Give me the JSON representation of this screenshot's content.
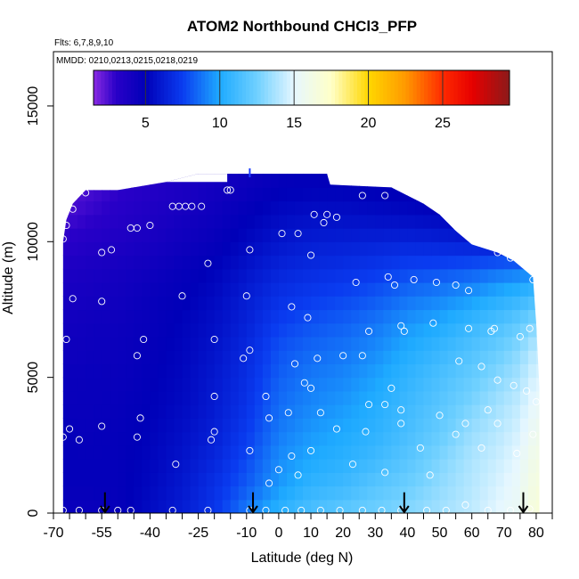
{
  "chart_data": {
    "type": "heatmap",
    "title": "ATOM2 Northbound CHCl3_PFP",
    "flights_label": "Flts: 6,7,8,9,10",
    "dates_label": "MMDD: 0210,0213,0215,0218,0219",
    "xlabel": "Latitude (deg N)",
    "ylabel": "Altitude (m)",
    "xlim": [
      -70,
      85
    ],
    "ylim": [
      0,
      17000
    ],
    "x_ticks": [
      -70,
      -65,
      -60,
      -55,
      -50,
      -45,
      -40,
      -35,
      -30,
      -25,
      -20,
      -15,
      -10,
      -5,
      0,
      5,
      10,
      15,
      20,
      25,
      30,
      35,
      40,
      45,
      50,
      55,
      60,
      65,
      70,
      75,
      80,
      85
    ],
    "x_tick_labels": [
      {
        "value": -70,
        "label": "-70"
      },
      {
        "value": -55,
        "label": "-55"
      },
      {
        "value": -40,
        "label": "-40"
      },
      {
        "value": -25,
        "label": "-25"
      },
      {
        "value": -10,
        "label": "-10"
      },
      {
        "value": 0,
        "label": "0"
      },
      {
        "value": 10,
        "label": "10"
      },
      {
        "value": 20,
        "label": "20"
      },
      {
        "value": 30,
        "label": "30"
      },
      {
        "value": 40,
        "label": "40"
      },
      {
        "value": 50,
        "label": "50"
      },
      {
        "value": 60,
        "label": "60"
      },
      {
        "value": 70,
        "label": "70"
      },
      {
        "value": 80,
        "label": "80"
      }
    ],
    "y_ticks": [
      {
        "value": 0,
        "label": "0"
      },
      {
        "value": 5000,
        "label": "5000"
      },
      {
        "value": 10000,
        "label": "10000"
      },
      {
        "value": 15000,
        "label": "15000"
      }
    ],
    "colorbar": {
      "range": [
        1.5,
        29.5
      ],
      "ticks": [
        {
          "value": 5,
          "label": "5"
        },
        {
          "value": 10,
          "label": "10"
        },
        {
          "value": 15,
          "label": "15"
        },
        {
          "value": 20,
          "label": "20"
        },
        {
          "value": 25,
          "label": "25"
        }
      ],
      "stops": [
        {
          "v": 1.5,
          "c": "#8a2be2"
        },
        {
          "v": 3,
          "c": "#2a00c8"
        },
        {
          "v": 5,
          "c": "#0000b8"
        },
        {
          "v": 7.5,
          "c": "#0a3cf0"
        },
        {
          "v": 10,
          "c": "#1eaaff"
        },
        {
          "v": 12.5,
          "c": "#6fd0ff"
        },
        {
          "v": 15,
          "c": "#e6f7ff"
        },
        {
          "v": 17.5,
          "c": "#ffffc8"
        },
        {
          "v": 20,
          "c": "#ffd700"
        },
        {
          "v": 22.5,
          "c": "#ff9900"
        },
        {
          "v": 25,
          "c": "#ff2a00"
        },
        {
          "v": 27,
          "c": "#e60000"
        },
        {
          "v": 29.5,
          "c": "#8b1a1a"
        }
      ]
    },
    "altitude_envelope": [
      {
        "lat": -67,
        "top": 10000
      },
      {
        "lat": -66,
        "top": 10800
      },
      {
        "lat": -64,
        "top": 11400
      },
      {
        "lat": -60,
        "top": 11900
      },
      {
        "lat": -50,
        "top": 11900
      },
      {
        "lat": -35,
        "top": 12200
      },
      {
        "lat": -25,
        "top": 12500
      },
      {
        "lat": 15,
        "top": 12500
      },
      {
        "lat": 16,
        "top": 12100
      },
      {
        "lat": 35,
        "top": 12000
      },
      {
        "lat": 40,
        "top": 11700
      },
      {
        "lat": 45,
        "top": 11400
      },
      {
        "lat": 50,
        "top": 11000
      },
      {
        "lat": 55,
        "top": 10400
      },
      {
        "lat": 60,
        "top": 9900
      },
      {
        "lat": 68,
        "top": 9600
      },
      {
        "lat": 73,
        "top": 9300
      },
      {
        "lat": 76,
        "top": 9000
      },
      {
        "lat": 79,
        "top": 8700
      },
      {
        "lat": 80,
        "top": 7000
      },
      {
        "lat": 81,
        "top": 4600
      },
      {
        "lat": 81,
        "top": 0
      }
    ],
    "field_rows": [
      {
        "alt": 0,
        "values": [
          4.5,
          4.5,
          4.7,
          5.5,
          6.2,
          7.2,
          9.0,
          10.5,
          11.5,
          12.0,
          12.5,
          13.0,
          13.6,
          14.2,
          15.0,
          15.5,
          16.8
        ]
      },
      {
        "alt": 1000,
        "values": [
          4.8,
          4.8,
          4.8,
          5.3,
          6.0,
          7.0,
          8.2,
          9.6,
          10.6,
          11.0,
          11.8,
          12.4,
          13.2,
          14.0,
          14.7,
          15.3,
          16.5
        ]
      },
      {
        "alt": 2000,
        "values": [
          4.8,
          4.8,
          4.8,
          5.2,
          5.8,
          6.6,
          7.8,
          9.3,
          10.0,
          10.4,
          11.0,
          11.8,
          12.8,
          13.8,
          14.4,
          15.0,
          16.2
        ]
      },
      {
        "alt": 3000,
        "values": [
          4.8,
          4.7,
          4.8,
          5.1,
          5.6,
          6.3,
          7.4,
          8.9,
          9.6,
          10.0,
          10.5,
          11.3,
          12.2,
          13.4,
          14.0,
          14.6,
          15.8
        ]
      },
      {
        "alt": 4000,
        "values": [
          4.6,
          4.6,
          4.7,
          5.0,
          5.4,
          6.1,
          7.1,
          8.6,
          9.2,
          9.6,
          10.2,
          11.0,
          11.8,
          12.8,
          13.6,
          14.2,
          15.3
        ]
      },
      {
        "alt": 5000,
        "values": [
          4.5,
          4.6,
          4.6,
          4.9,
          5.3,
          6.0,
          6.9,
          8.3,
          8.9,
          9.2,
          9.8,
          10.6,
          11.4,
          12.2,
          13.0,
          13.6,
          14.8
        ]
      },
      {
        "alt": 6000,
        "values": [
          4.3,
          4.4,
          4.5,
          4.8,
          5.2,
          5.8,
          6.7,
          8.0,
          8.5,
          8.8,
          9.3,
          10.1,
          10.8,
          11.6,
          12.3,
          13.0,
          14.2
        ]
      },
      {
        "alt": 7000,
        "values": [
          4.1,
          4.3,
          4.4,
          4.7,
          5.1,
          5.6,
          6.4,
          7.5,
          8.0,
          8.3,
          8.8,
          9.5,
          10.0,
          10.8,
          11.4,
          12.0,
          13.0
        ]
      },
      {
        "alt": 8000,
        "values": [
          3.9,
          4.0,
          4.2,
          4.6,
          4.9,
          5.4,
          6.2,
          7.0,
          7.4,
          7.7,
          8.1,
          8.7,
          9.1,
          9.6,
          10.2,
          10.6,
          11.2
        ]
      },
      {
        "alt": 9000,
        "values": [
          3.6,
          3.8,
          4.0,
          4.3,
          4.7,
          5.1,
          5.8,
          6.5,
          6.8,
          7.0,
          7.3,
          7.7,
          7.9,
          8.2,
          8.6,
          8.8,
          9.0
        ]
      },
      {
        "alt": 10000,
        "values": [
          3.0,
          3.3,
          3.6,
          3.9,
          4.3,
          4.7,
          5.3,
          5.9,
          6.2,
          6.3,
          6.4,
          6.5,
          6.4,
          6.2,
          6.0,
          5.9,
          5.8
        ]
      },
      {
        "alt": 11000,
        "values": [
          2.5,
          2.8,
          3.2,
          3.6,
          4.0,
          4.4,
          4.9,
          5.4,
          5.6,
          5.6,
          5.5,
          5.4,
          5.2,
          5.0,
          4.9,
          4.9,
          4.9
        ]
      },
      {
        "alt": 12000,
        "values": [
          2.2,
          2.5,
          2.9,
          3.3,
          3.7,
          4.1,
          4.5,
          4.9,
          5.0,
          5.0,
          4.9,
          4.8,
          4.7,
          4.6,
          4.6,
          4.6,
          4.6
        ]
      },
      {
        "alt": 13000,
        "values": [
          2.2,
          2.5,
          2.9,
          3.3,
          3.7,
          4.0,
          4.3,
          4.6,
          4.7,
          4.7,
          4.7,
          4.6,
          4.6,
          4.6,
          4.6,
          4.6,
          4.6
        ]
      }
    ],
    "field_lats": [
      -68,
      -60,
      -50,
      -40,
      -30,
      -20,
      -10,
      0,
      10,
      20,
      30,
      40,
      50,
      60,
      68,
      74,
      80
    ],
    "samples": [
      {
        "x": -67,
        "y": 100
      },
      {
        "x": -62,
        "y": 100
      },
      {
        "x": -55,
        "y": 100
      },
      {
        "x": -50,
        "y": 100
      },
      {
        "x": -46,
        "y": 100
      },
      {
        "x": -33,
        "y": 100
      },
      {
        "x": -22,
        "y": 100
      },
      {
        "x": -9,
        "y": 100
      },
      {
        "x": -4,
        "y": 100
      },
      {
        "x": 2,
        "y": 100
      },
      {
        "x": 7,
        "y": 100
      },
      {
        "x": 13,
        "y": 100
      },
      {
        "x": 19,
        "y": 100
      },
      {
        "x": 26,
        "y": 100
      },
      {
        "x": 32,
        "y": 100
      },
      {
        "x": 38,
        "y": 100
      },
      {
        "x": 46,
        "y": 100
      },
      {
        "x": 52,
        "y": 100
      },
      {
        "x": 58,
        "y": 300
      },
      {
        "x": 65,
        "y": 100
      },
      {
        "x": 72,
        "y": 100
      },
      {
        "x": 78,
        "y": 150
      },
      {
        "x": -67,
        "y": 2800
      },
      {
        "x": -65,
        "y": 3100
      },
      {
        "x": -62,
        "y": 2700
      },
      {
        "x": -55,
        "y": 3200
      },
      {
        "x": -44,
        "y": 2800
      },
      {
        "x": -43,
        "y": 3500
      },
      {
        "x": -32,
        "y": 1800
      },
      {
        "x": -21,
        "y": 2700
      },
      {
        "x": -20,
        "y": 3000
      },
      {
        "x": -9,
        "y": 2300
      },
      {
        "x": -3,
        "y": 1100
      },
      {
        "x": 0,
        "y": 1600
      },
      {
        "x": 4,
        "y": 2100
      },
      {
        "x": 6,
        "y": 1400
      },
      {
        "x": 10,
        "y": 2300
      },
      {
        "x": 18,
        "y": 3100
      },
      {
        "x": 23,
        "y": 1800
      },
      {
        "x": 27,
        "y": 3000
      },
      {
        "x": 33,
        "y": 1500
      },
      {
        "x": 38,
        "y": 3300
      },
      {
        "x": 44,
        "y": 2400
      },
      {
        "x": 47,
        "y": 1400
      },
      {
        "x": 50,
        "y": 3600
      },
      {
        "x": 55,
        "y": 2900
      },
      {
        "x": 58,
        "y": 3300
      },
      {
        "x": 63,
        "y": 2400
      },
      {
        "x": 68,
        "y": 3300
      },
      {
        "x": 74,
        "y": 2200
      },
      {
        "x": 79,
        "y": 2900
      },
      {
        "x": 80,
        "y": 4100
      },
      {
        "x": -66,
        "y": 6400
      },
      {
        "x": -64,
        "y": 7900
      },
      {
        "x": -55,
        "y": 7800
      },
      {
        "x": -44,
        "y": 5800
      },
      {
        "x": -42,
        "y": 6400
      },
      {
        "x": -30,
        "y": 8000
      },
      {
        "x": -20,
        "y": 6400
      },
      {
        "x": -20,
        "y": 4300
      },
      {
        "x": -11,
        "y": 5700
      },
      {
        "x": -9,
        "y": 6000
      },
      {
        "x": -4,
        "y": 4300
      },
      {
        "x": -3,
        "y": 3500
      },
      {
        "x": 3,
        "y": 3700
      },
      {
        "x": 5,
        "y": 5500
      },
      {
        "x": 8,
        "y": 4800
      },
      {
        "x": 10,
        "y": 4600
      },
      {
        "x": 12,
        "y": 5700
      },
      {
        "x": 13,
        "y": 3700
      },
      {
        "x": 20,
        "y": 5800
      },
      {
        "x": 26,
        "y": 5800
      },
      {
        "x": 28,
        "y": 4000
      },
      {
        "x": 33,
        "y": 4000
      },
      {
        "x": 35,
        "y": 4600
      },
      {
        "x": 38,
        "y": 3800
      },
      {
        "x": 38,
        "y": 6900
      },
      {
        "x": 39,
        "y": 6700
      },
      {
        "x": 48,
        "y": 7000
      },
      {
        "x": 56,
        "y": 5600
      },
      {
        "x": 59,
        "y": 6800
      },
      {
        "x": 63,
        "y": 5400
      },
      {
        "x": 65,
        "y": 3800
      },
      {
        "x": 66,
        "y": 6700
      },
      {
        "x": 67,
        "y": 6800
      },
      {
        "x": 68,
        "y": 4900
      },
      {
        "x": 73,
        "y": 4700
      },
      {
        "x": 75,
        "y": 6500
      },
      {
        "x": 77,
        "y": 4500
      },
      {
        "x": 78,
        "y": 6800
      },
      {
        "x": -67,
        "y": 10100
      },
      {
        "x": -66,
        "y": 10600
      },
      {
        "x": -64,
        "y": 11200
      },
      {
        "x": -60,
        "y": 11800
      },
      {
        "x": -55,
        "y": 9600
      },
      {
        "x": -52,
        "y": 9700
      },
      {
        "x": -46,
        "y": 10500
      },
      {
        "x": -44,
        "y": 10500
      },
      {
        "x": -40,
        "y": 10600
      },
      {
        "x": -33,
        "y": 11300
      },
      {
        "x": -31,
        "y": 11300
      },
      {
        "x": -29,
        "y": 11300
      },
      {
        "x": -27,
        "y": 11300
      },
      {
        "x": -24,
        "y": 11300
      },
      {
        "x": -22,
        "y": 9200
      },
      {
        "x": -16,
        "y": 11900
      },
      {
        "x": -15,
        "y": 11900
      },
      {
        "x": -9,
        "y": 9700
      },
      {
        "x": -10,
        "y": 8000
      },
      {
        "x": 1,
        "y": 10300
      },
      {
        "x": 4,
        "y": 7600
      },
      {
        "x": 6,
        "y": 10300
      },
      {
        "x": 9,
        "y": 7200
      },
      {
        "x": 10,
        "y": 9500
      },
      {
        "x": 11,
        "y": 11000
      },
      {
        "x": 14,
        "y": 10700
      },
      {
        "x": 15,
        "y": 11000
      },
      {
        "x": 18,
        "y": 10900
      },
      {
        "x": 24,
        "y": 8500
      },
      {
        "x": 26,
        "y": 11700
      },
      {
        "x": 28,
        "y": 6700
      },
      {
        "x": 33,
        "y": 11700
      },
      {
        "x": 34,
        "y": 8700
      },
      {
        "x": 36,
        "y": 8400
      },
      {
        "x": 42,
        "y": 8600
      },
      {
        "x": 42,
        "y": 11800
      },
      {
        "x": 49,
        "y": 8500
      },
      {
        "x": 55,
        "y": 8400
      },
      {
        "x": 59,
        "y": 8200
      },
      {
        "x": 68,
        "y": 9600
      },
      {
        "x": 72,
        "y": 9400
      },
      {
        "x": 79,
        "y": 8600
      }
    ],
    "flight_arrows": [
      -54,
      -8,
      39,
      76
    ],
    "arrow_top": 700,
    "top_mark": {
      "x": -9,
      "y": 12700
    },
    "nan_mask": [
      {
        "lat_from": -69,
        "lat_to": -16,
        "alt_from": 12200,
        "alt_to": 13500
      }
    ]
  }
}
